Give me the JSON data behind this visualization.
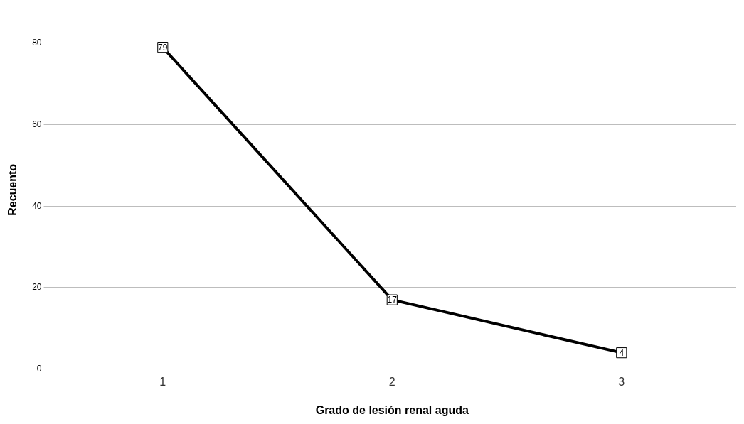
{
  "chart_data": {
    "type": "line",
    "xlabel": "Grado de lesión renal aguda",
    "ylabel": "Recuento",
    "categories": [
      "1",
      "2",
      "3"
    ],
    "series": [
      {
        "color": "#000000",
        "values": [
          79,
          17,
          4
        ]
      }
    ],
    "ylim": [
      0,
      88
    ],
    "yticks": [
      0,
      20,
      40,
      60,
      80
    ],
    "grid": "y",
    "legend": false,
    "marker": "square",
    "line_style": "solid",
    "data_labels": true
  }
}
